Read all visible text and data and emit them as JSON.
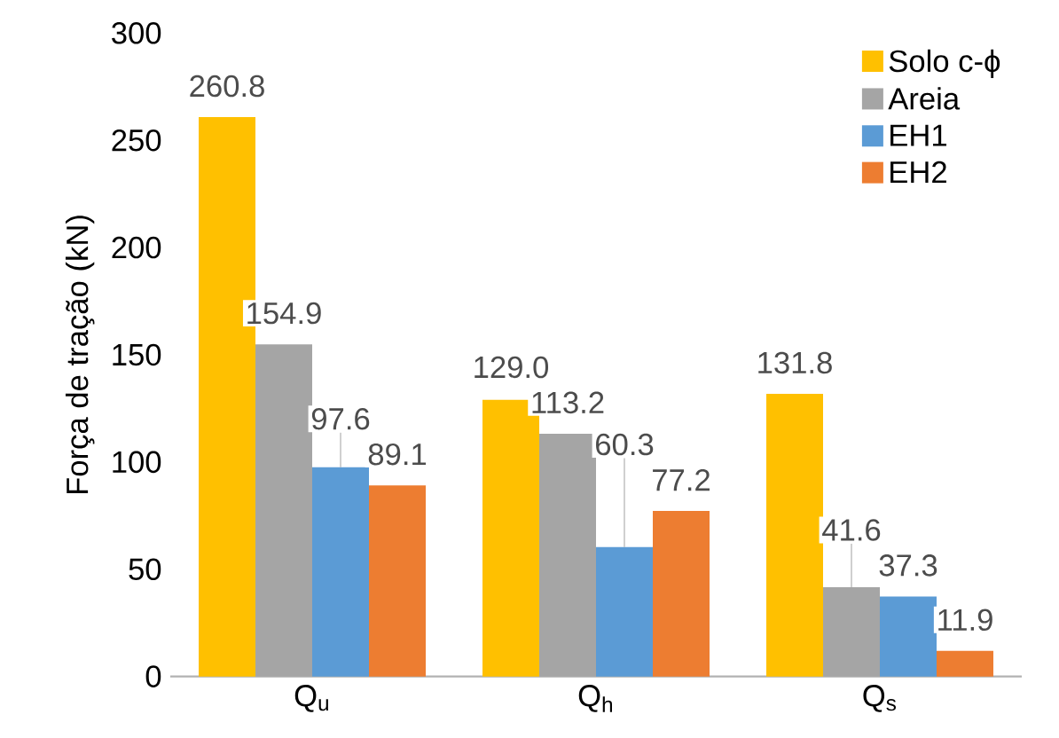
{
  "chart_data": {
    "type": "bar",
    "ylabel": "Força de tração (kN)",
    "categories": [
      "Q$_{u}$",
      "Q$_{h}$",
      "Q$_{s}$"
    ],
    "series": [
      {
        "name": "Solo c-ϕ",
        "color": "#ffc000",
        "values": [
          260.8,
          129.0,
          131.8
        ],
        "value_labels": [
          "260.8",
          "129.0",
          "131.8"
        ]
      },
      {
        "name": "Areia",
        "color": "#a5a5a5",
        "values": [
          154.9,
          113.2,
          41.6
        ],
        "value_labels": [
          "154.9",
          "113.2",
          "41.6"
        ]
      },
      {
        "name": "EH1",
        "color": "#5b9bd5",
        "values": [
          97.6,
          60.3,
          37.3
        ],
        "value_labels": [
          "97.6",
          "60.3",
          "37.3"
        ]
      },
      {
        "name": "EH2",
        "color": "#ed7d31",
        "values": [
          89.1,
          77.2,
          11.9
        ],
        "value_labels": [
          "89.1",
          "77.2",
          "11.9"
        ]
      }
    ],
    "ylim": [
      0,
      300
    ],
    "yticks": [
      0,
      50,
      100,
      150,
      200,
      250,
      300
    ],
    "legend": "top right"
  }
}
